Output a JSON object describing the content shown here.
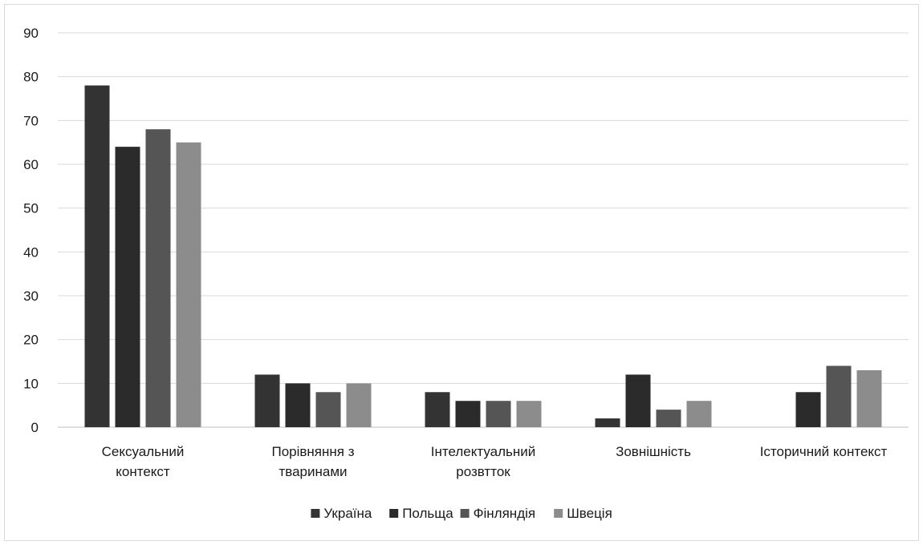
{
  "chart_data": {
    "type": "bar",
    "title": "",
    "xlabel": "",
    "ylabel": "",
    "ylim": [
      0,
      90
    ],
    "yticks": [
      0,
      10,
      20,
      30,
      40,
      50,
      60,
      70,
      80,
      90
    ],
    "grid": true,
    "legend_position": "bottom",
    "categories": [
      [
        "Сексуальний",
        "контекст"
      ],
      [
        "Порівняння з",
        "тваринами"
      ],
      [
        "Інтелектуальний",
        "розвтток"
      ],
      [
        "Зовнішність"
      ],
      [
        "Історичний контекст"
      ]
    ],
    "series": [
      {
        "name": "Україна",
        "color": "#333333",
        "values": [
          78,
          12,
          8,
          2,
          0
        ]
      },
      {
        "name": "Польща",
        "color": "#2b2b2b",
        "values": [
          64,
          10,
          6,
          12,
          8
        ]
      },
      {
        "name": "Фінляндія",
        "color": "#555555",
        "values": [
          68,
          8,
          6,
          4,
          14
        ]
      },
      {
        "name": "Швеція",
        "color": "#8c8c8c",
        "values": [
          65,
          10,
          6,
          6,
          13
        ]
      }
    ]
  }
}
